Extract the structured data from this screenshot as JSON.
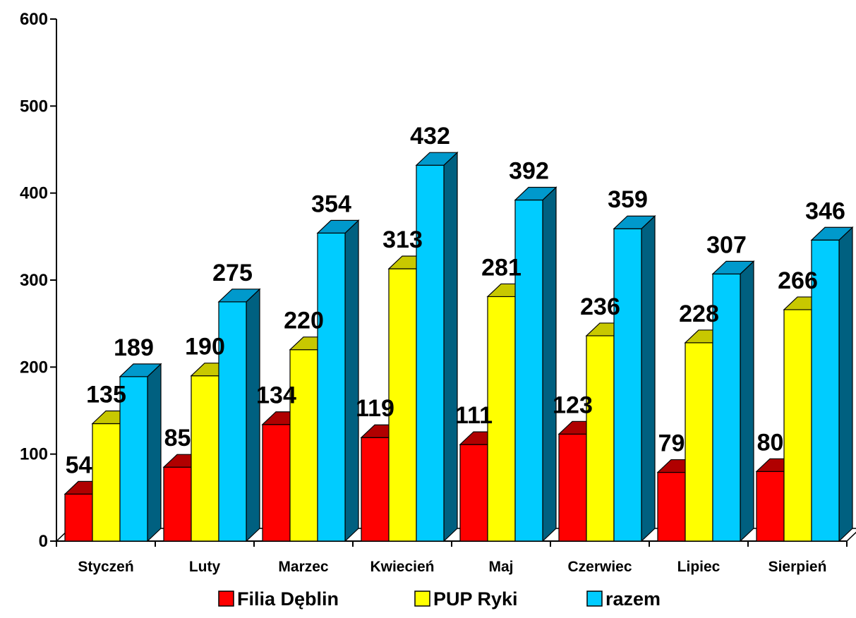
{
  "chart_data": {
    "type": "bar",
    "categories": [
      "Styczeń",
      "Luty",
      "Marzec",
      "Kwiecień",
      "Maj",
      "Czerwiec",
      "Lipiec",
      "Sierpień"
    ],
    "series": [
      {
        "name": "Filia Dęblin",
        "values": [
          54,
          85,
          134,
          119,
          111,
          123,
          79,
          80
        ],
        "color": "#FF0000",
        "top_color": "#B00000",
        "side_color": "#800000"
      },
      {
        "name": "PUP Ryki",
        "values": [
          135,
          190,
          220,
          313,
          281,
          236,
          228,
          266
        ],
        "color": "#FFFF00",
        "top_color": "#C8C800",
        "side_color": "#8C8C00"
      },
      {
        "name": "razem",
        "values": [
          189,
          275,
          354,
          432,
          392,
          359,
          307,
          346
        ],
        "color": "#00CCFF",
        "top_color": "#0099CC",
        "side_color": "#006080"
      }
    ],
    "y_ticks": [
      "0",
      "100",
      "200",
      "300",
      "400",
      "500",
      "600"
    ],
    "ylim": [
      0,
      600
    ],
    "three_d": true,
    "grid": false,
    "legend": "bottom"
  }
}
